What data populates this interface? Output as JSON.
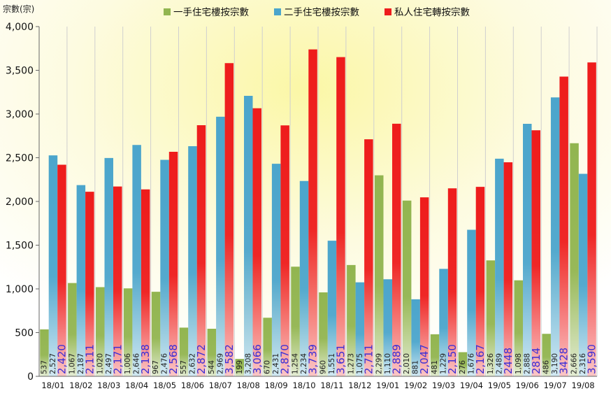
{
  "chart_data": {
    "type": "bar",
    "ylabel": "宗數(宗)",
    "ylim": [
      0,
      4000
    ],
    "yticks": [
      0,
      500,
      1000,
      1500,
      2000,
      2500,
      3000,
      3500,
      4000
    ],
    "ytick_labels": [
      "0",
      "500",
      "1,000",
      "1,500",
      "2,000",
      "2,500",
      "3,000",
      "3,500",
      "4,000"
    ],
    "grid": "vertical lines only",
    "legend_position": "top",
    "categories": [
      "18/01",
      "18/02",
      "18/03",
      "18/04",
      "18/05",
      "18/06",
      "18/07",
      "18/08",
      "18/09",
      "18/10",
      "18/11",
      "18/12",
      "19/01",
      "19/02",
      "19/03",
      "19/04",
      "19/05",
      "19/06",
      "19/07",
      "19/08"
    ],
    "series": [
      {
        "name": "一手住宅樓按宗數",
        "color": "#92b550",
        "values": [
          537,
          1067,
          1020,
          1006,
          967,
          557,
          544,
          199,
          670,
          1254,
          960,
          1273,
          2299,
          2010,
          481,
          276,
          1326,
          1098,
          486,
          2666
        ],
        "labels": [
          "537",
          "1,067",
          "1,020",
          "1,006",
          "967",
          "557",
          "544",
          "199",
          "670",
          "1,254",
          "960",
          "1,273",
          "2,299",
          "2,010",
          "481",
          "276",
          "1,326",
          "1,098",
          "486",
          "2,666"
        ]
      },
      {
        "name": "二手住宅樓按宗數",
        "color": "#4ba5cc",
        "values": [
          2527,
          2187,
          2497,
          2646,
          2476,
          2632,
          2969,
          3208,
          2431,
          2234,
          1551,
          1075,
          1110,
          881,
          1229,
          1676,
          2489,
          2888,
          3190,
          2316
        ],
        "labels": [
          "2,527",
          "2,187",
          "2,497",
          "2,646",
          "2,476",
          "2,632",
          "2,969",
          "3,208",
          "2,431",
          "2,234",
          "1,551",
          "1,075",
          "1,110",
          "881",
          "1,229",
          "1,676",
          "2,489",
          "2,888",
          "3,190",
          "2,316"
        ]
      },
      {
        "name": "私人住宅轉按宗數",
        "color": "#ee1c1c",
        "values": [
          2420,
          2111,
          2171,
          2138,
          2568,
          2872,
          3582,
          3066,
          2870,
          3739,
          3651,
          2711,
          2889,
          2047,
          2150,
          2167,
          2448,
          2814,
          3428,
          3590
        ],
        "labels": [
          "2,420",
          "2,111",
          "2,171",
          "2,138",
          "2,568",
          "2,872",
          "3,582",
          "3,066",
          "2,870",
          "3,739",
          "3,651",
          "2,711",
          "2,889",
          "2,047",
          "2,150",
          "2,167",
          "2448",
          "2814",
          "3428",
          "3,590"
        ]
      }
    ]
  }
}
